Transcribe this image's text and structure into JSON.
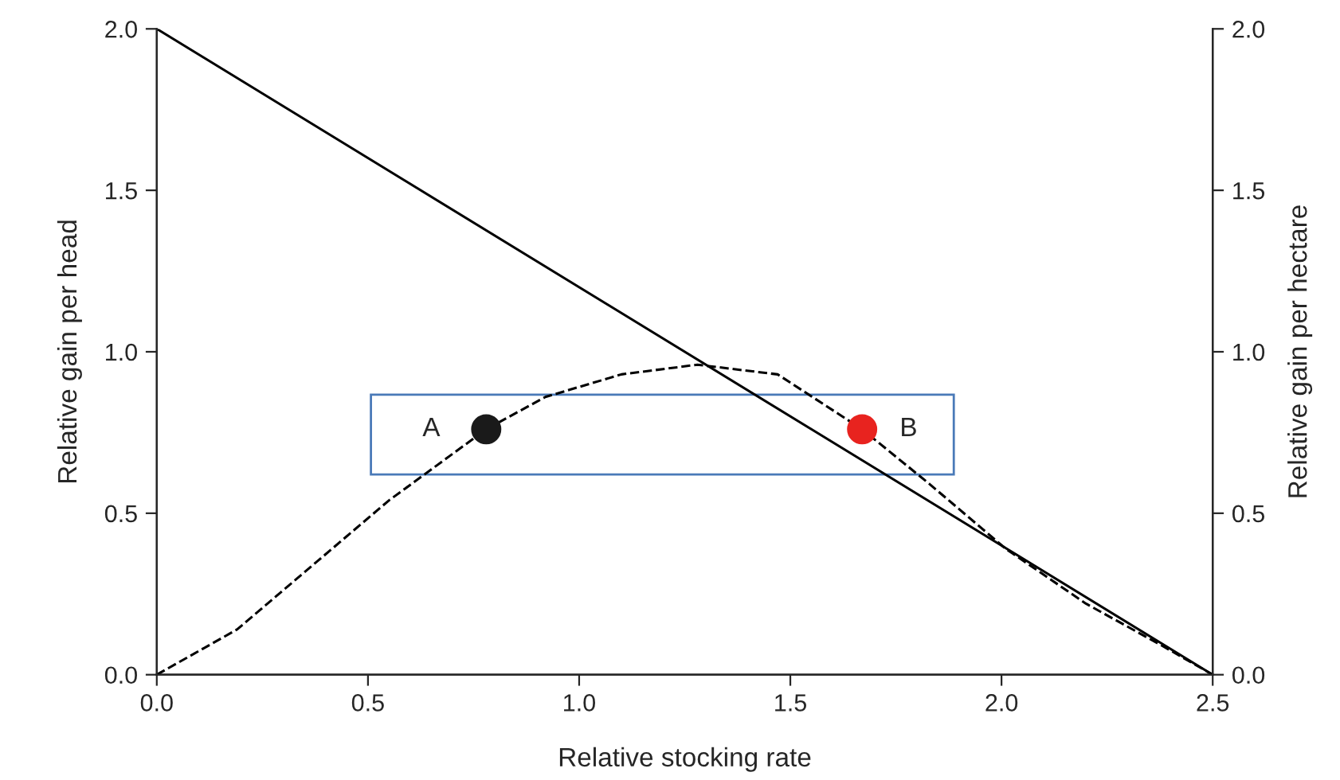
{
  "chart_data": {
    "type": "line",
    "xlabel": "Relative stocking rate",
    "ylabel": "Relative gain per head",
    "y2label": "Relative gain per hectare",
    "xlim": [
      0,
      2.5
    ],
    "xticks": [
      {
        "value": 0,
        "label": "0.0"
      },
      0.5,
      {
        "value": 1,
        "label": "1.0"
      },
      1.5,
      {
        "value": 2,
        "label": "2.0"
      },
      2.5
    ],
    "ylim": [
      0,
      2
    ],
    "yticks": [
      {
        "value": 0,
        "label": "0.0"
      },
      0.5,
      {
        "value": 1,
        "label": "1.0"
      },
      1.5,
      {
        "value": 2,
        "label": "2.0"
      }
    ],
    "y2lim": [
      0,
      2
    ],
    "y2ticks": [
      {
        "value": 0,
        "label": "0.0"
      },
      0.5,
      {
        "value": 1,
        "label": "1.0"
      },
      1.5,
      {
        "value": 2,
        "label": "2.0"
      }
    ],
    "grid": false,
    "legend": false,
    "series": [
      {
        "color": "#000000",
        "line_style": "solid",
        "x": [
          0,
          2.5
        ],
        "values": [
          2.0,
          0.0
        ]
      },
      {
        "color": "#000000",
        "line_style": "dashed",
        "axis": "y2",
        "x": [
          0,
          0.19,
          0.37,
          0.55,
          0.78,
          0.92,
          1.1,
          1.28,
          1.47,
          1.67,
          1.83,
          2.01,
          2.2,
          2.38,
          2.5
        ],
        "values": [
          0,
          0.14,
          0.34,
          0.54,
          0.76,
          0.86,
          0.93,
          0.96,
          0.93,
          0.76,
          0.59,
          0.39,
          0.22,
          0.09,
          0
        ]
      },
      {
        "type": "scatter",
        "marker": "circle",
        "axis": "y2",
        "x": [
          0.78,
          1.67
        ],
        "values": [
          0.76,
          0.76
        ],
        "colors": [
          "#1a1a1a",
          "#e8231f"
        ]
      }
    ],
    "annotations": [
      {
        "text": "A",
        "x": 0.78,
        "y": 0.76
      },
      {
        "text": "B",
        "x": 1.67,
        "y": 0.76
      }
    ]
  }
}
